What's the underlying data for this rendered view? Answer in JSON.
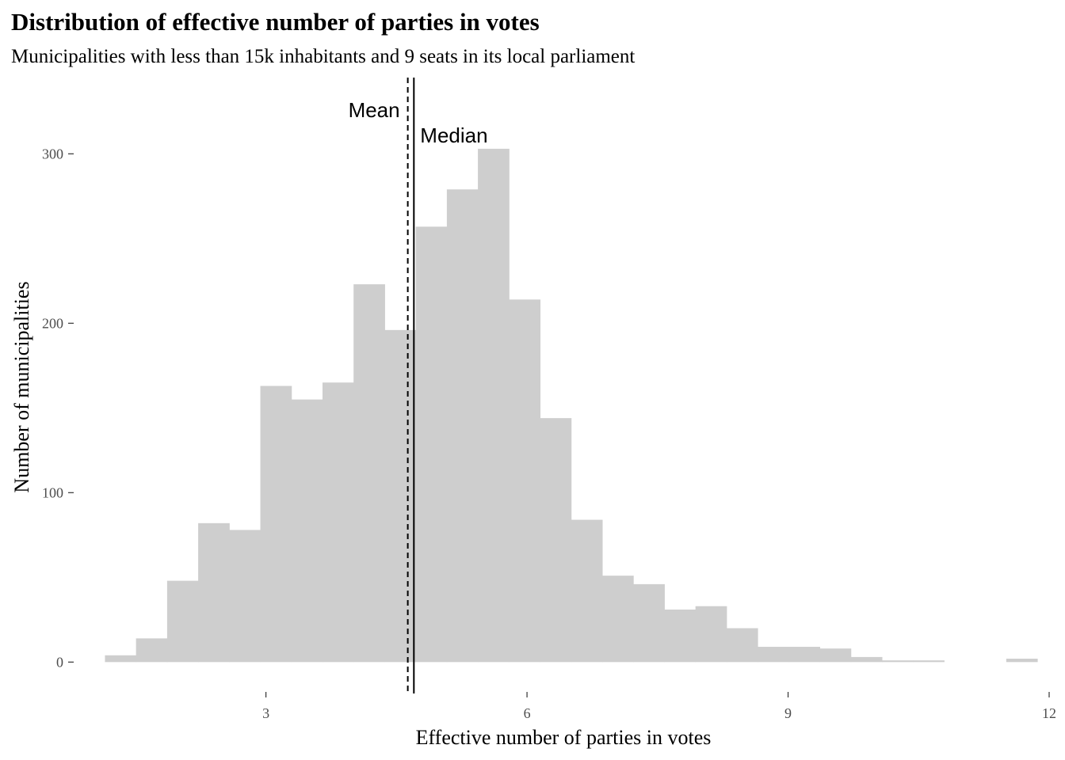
{
  "chart_data": {
    "type": "bar",
    "title": "Distribution of effective number of parties in votes",
    "subtitle": "Municipalities with less than 15k inhabitants and 9 seats in its local parliament",
    "xlabel": "Effective number of parties in votes",
    "ylabel": "Number of municipalities",
    "xlim": [
      0.8,
      12
    ],
    "ylim": [
      -12,
      345
    ],
    "x_ticks": [
      3,
      6,
      9,
      12
    ],
    "y_ticks": [
      0,
      100,
      200,
      300
    ],
    "bin_width": 0.3571,
    "bins": [
      {
        "x0": 1.15,
        "x1": 1.5071,
        "count": 4
      },
      {
        "x0": 1.5071,
        "x1": 1.8643,
        "count": 14
      },
      {
        "x0": 1.8643,
        "x1": 2.2214,
        "count": 48
      },
      {
        "x0": 2.2214,
        "x1": 2.5786,
        "count": 82
      },
      {
        "x0": 2.5786,
        "x1": 2.9357,
        "count": 78
      },
      {
        "x0": 2.9357,
        "x1": 3.2929,
        "count": 163
      },
      {
        "x0": 3.2929,
        "x1": 3.65,
        "count": 155
      },
      {
        "x0": 3.65,
        "x1": 4.0071,
        "count": 165
      },
      {
        "x0": 4.0071,
        "x1": 4.3643,
        "count": 223
      },
      {
        "x0": 4.3643,
        "x1": 4.7214,
        "count": 196
      },
      {
        "x0": 4.7214,
        "x1": 5.0786,
        "count": 257
      },
      {
        "x0": 5.0786,
        "x1": 5.4357,
        "count": 279
      },
      {
        "x0": 5.4357,
        "x1": 5.7929,
        "count": 303
      },
      {
        "x0": 5.7929,
        "x1": 6.15,
        "count": 214
      },
      {
        "x0": 6.15,
        "x1": 6.5071,
        "count": 144
      },
      {
        "x0": 6.5071,
        "x1": 6.8643,
        "count": 84
      },
      {
        "x0": 6.8643,
        "x1": 7.2214,
        "count": 51
      },
      {
        "x0": 7.2214,
        "x1": 7.5786,
        "count": 46
      },
      {
        "x0": 7.5786,
        "x1": 7.9357,
        "count": 31
      },
      {
        "x0": 7.9357,
        "x1": 8.2929,
        "count": 33
      },
      {
        "x0": 8.2929,
        "x1": 8.65,
        "count": 20
      },
      {
        "x0": 8.65,
        "x1": 9.0071,
        "count": 9
      },
      {
        "x0": 9.0071,
        "x1": 9.3643,
        "count": 9
      },
      {
        "x0": 9.3643,
        "x1": 9.7214,
        "count": 8
      },
      {
        "x0": 9.7214,
        "x1": 10.0786,
        "count": 3
      },
      {
        "x0": 10.0786,
        "x1": 10.4357,
        "count": 1
      },
      {
        "x0": 10.4357,
        "x1": 10.7929,
        "count": 1
      },
      {
        "x0": 10.7929,
        "x1": 11.15,
        "count": 0
      },
      {
        "x0": 11.15,
        "x1": 11.5071,
        "count": 0
      },
      {
        "x0": 11.5071,
        "x1": 11.8643,
        "count": 2
      }
    ],
    "bar_color": "#cecece",
    "reference_lines": [
      {
        "label": "Mean",
        "x": 4.63,
        "style": "dashed"
      },
      {
        "label": "Median",
        "x": 4.7,
        "style": "solid"
      }
    ],
    "grid": false,
    "legend": "none"
  }
}
